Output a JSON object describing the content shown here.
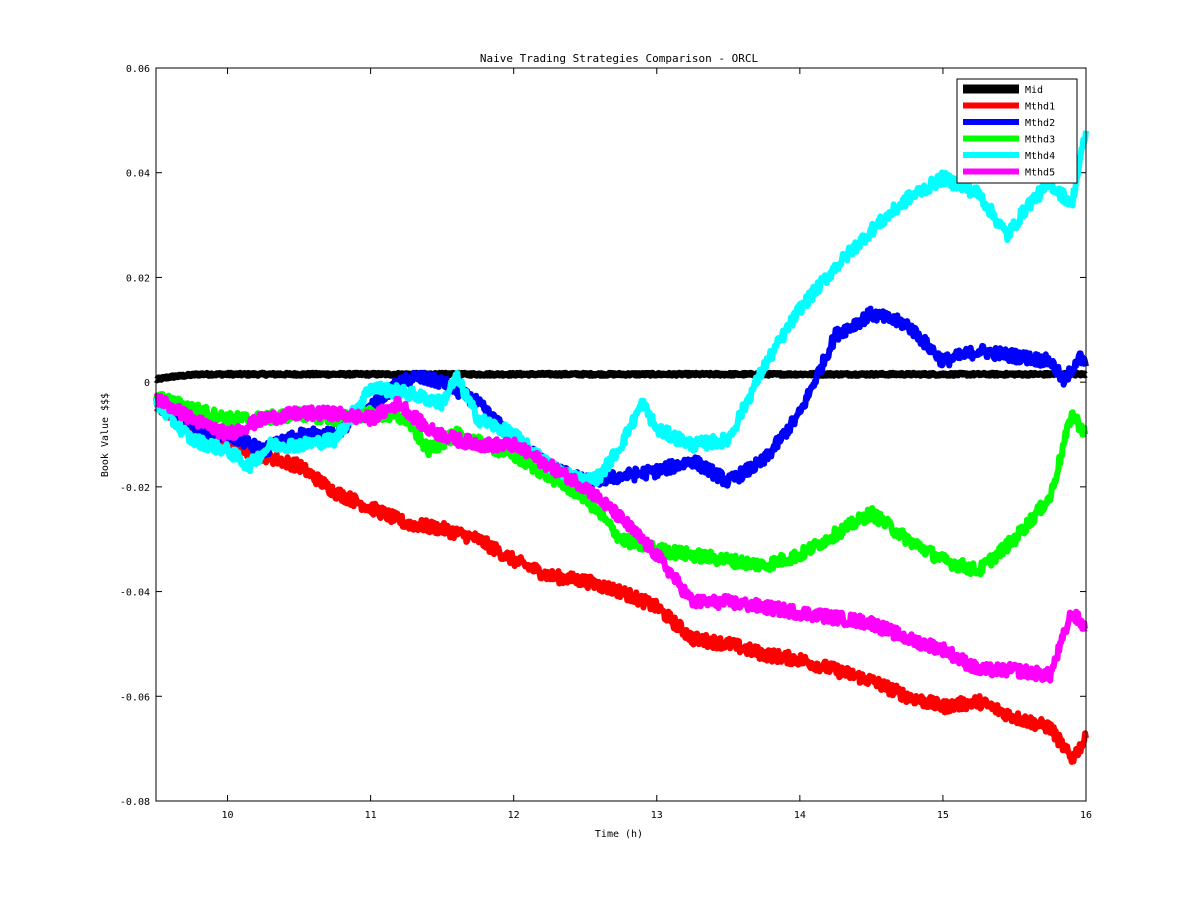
{
  "chart_data": {
    "type": "line",
    "title": "Naive Trading Strategies Comparison - ORCL",
    "xlabel": "Time (h)",
    "ylabel": "Book Value $$$",
    "xlim": [
      9.5,
      16
    ],
    "ylim": [
      -0.08,
      0.06
    ],
    "xticks": [
      10,
      11,
      12,
      13,
      14,
      15,
      16
    ],
    "yticks": [
      -0.08,
      -0.06,
      -0.04,
      -0.02,
      0,
      0.02,
      0.04,
      0.06
    ],
    "xtick_labels": [
      "10",
      "11",
      "12",
      "13",
      "14",
      "15",
      "16"
    ],
    "ytick_labels": [
      "-0.08",
      "-0.06",
      "-0.04",
      "-0.02",
      "0",
      "0.02",
      "0.04",
      "0.06"
    ],
    "grid": false,
    "legend_position": "top-right",
    "series": [
      {
        "name": "Mid",
        "color": "#000000",
        "x": [
          9.5,
          9.6,
          9.8,
          10.0,
          10.5,
          11.0,
          12.0,
          13.0,
          14.0,
          15.0,
          16.0
        ],
        "y": [
          0.0005,
          0.001,
          0.0015,
          0.0015,
          0.0015,
          0.0015,
          0.0015,
          0.0015,
          0.0015,
          0.0015,
          0.0015
        ]
      },
      {
        "name": "Mthd1",
        "color": "#ff0000",
        "x": [
          9.5,
          9.75,
          10.0,
          10.5,
          10.75,
          11.0,
          11.25,
          11.5,
          11.75,
          12.0,
          12.25,
          12.5,
          12.75,
          13.0,
          13.25,
          13.5,
          13.75,
          14.0,
          14.25,
          14.5,
          14.75,
          15.0,
          15.25,
          15.5,
          15.75,
          15.9,
          16.0
        ],
        "y": [
          -0.004,
          -0.009,
          -0.012,
          -0.016,
          -0.021,
          -0.024,
          -0.027,
          -0.028,
          -0.03,
          -0.034,
          -0.037,
          -0.038,
          -0.04,
          -0.043,
          -0.049,
          -0.05,
          -0.052,
          -0.053,
          -0.055,
          -0.057,
          -0.06,
          -0.062,
          -0.061,
          -0.064,
          -0.066,
          -0.072,
          -0.068
        ]
      },
      {
        "name": "Mthd2",
        "color": "#0000ff",
        "x": [
          9.5,
          9.75,
          10.0,
          10.25,
          10.5,
          10.75,
          11.0,
          11.15,
          11.3,
          11.5,
          11.75,
          12.0,
          12.25,
          12.5,
          12.75,
          13.0,
          13.25,
          13.5,
          13.75,
          14.0,
          14.25,
          14.5,
          14.75,
          15.0,
          15.25,
          15.5,
          15.75,
          15.85,
          15.95,
          16.0
        ],
        "y": [
          -0.003,
          -0.009,
          -0.01,
          -0.013,
          -0.01,
          -0.01,
          -0.005,
          -0.001,
          0.001,
          0.0,
          -0.004,
          -0.011,
          -0.016,
          -0.019,
          -0.018,
          -0.017,
          -0.015,
          -0.019,
          -0.015,
          -0.006,
          0.009,
          0.013,
          0.011,
          0.004,
          0.006,
          0.005,
          0.004,
          0.0,
          0.005,
          0.003
        ]
      },
      {
        "name": "Mthd3",
        "color": "#00ff00",
        "x": [
          9.5,
          9.75,
          10.0,
          10.25,
          10.5,
          10.75,
          11.0,
          11.25,
          11.4,
          11.6,
          11.8,
          12.0,
          12.25,
          12.5,
          12.75,
          13.0,
          13.25,
          13.5,
          13.75,
          14.0,
          14.25,
          14.5,
          14.75,
          15.0,
          15.25,
          15.5,
          15.75,
          15.9,
          16.0
        ],
        "y": [
          -0.003,
          -0.005,
          -0.007,
          -0.007,
          -0.006,
          -0.007,
          -0.006,
          -0.007,
          -0.013,
          -0.01,
          -0.012,
          -0.014,
          -0.018,
          -0.022,
          -0.03,
          -0.032,
          -0.033,
          -0.034,
          -0.035,
          -0.033,
          -0.029,
          -0.025,
          -0.03,
          -0.034,
          -0.036,
          -0.03,
          -0.022,
          -0.006,
          -0.01
        ]
      },
      {
        "name": "Mthd4",
        "color": "#00ffff",
        "x": [
          9.5,
          9.75,
          10.0,
          10.15,
          10.3,
          10.5,
          10.75,
          11.0,
          11.25,
          11.5,
          11.6,
          11.75,
          12.0,
          12.25,
          12.5,
          12.6,
          12.75,
          12.9,
          13.0,
          13.25,
          13.5,
          13.75,
          14.0,
          14.25,
          14.5,
          14.75,
          15.0,
          15.25,
          15.45,
          15.6,
          15.75,
          15.9,
          16.0
        ],
        "y": [
          -0.004,
          -0.011,
          -0.013,
          -0.016,
          -0.012,
          -0.012,
          -0.011,
          -0.001,
          -0.002,
          -0.004,
          0.001,
          -0.007,
          -0.01,
          -0.016,
          -0.019,
          -0.018,
          -0.012,
          -0.004,
          -0.009,
          -0.012,
          -0.011,
          0.003,
          0.014,
          0.022,
          0.029,
          0.035,
          0.039,
          0.036,
          0.028,
          0.034,
          0.038,
          0.034,
          0.048
        ]
      },
      {
        "name": "Mthd5",
        "color": "#ff00ff",
        "x": [
          9.5,
          9.75,
          10.0,
          10.25,
          10.5,
          10.75,
          11.0,
          11.2,
          11.4,
          11.6,
          11.8,
          12.0,
          12.25,
          12.5,
          12.75,
          13.0,
          13.25,
          13.5,
          13.75,
          14.0,
          14.25,
          14.5,
          14.75,
          15.0,
          15.25,
          15.5,
          15.75,
          15.9,
          16.0
        ],
        "y": [
          -0.003,
          -0.007,
          -0.01,
          -0.007,
          -0.006,
          -0.006,
          -0.007,
          -0.004,
          -0.009,
          -0.011,
          -0.012,
          -0.012,
          -0.016,
          -0.02,
          -0.026,
          -0.033,
          -0.042,
          -0.042,
          -0.043,
          -0.044,
          -0.045,
          -0.046,
          -0.049,
          -0.051,
          -0.055,
          -0.055,
          -0.056,
          -0.044,
          -0.047
        ]
      }
    ]
  }
}
